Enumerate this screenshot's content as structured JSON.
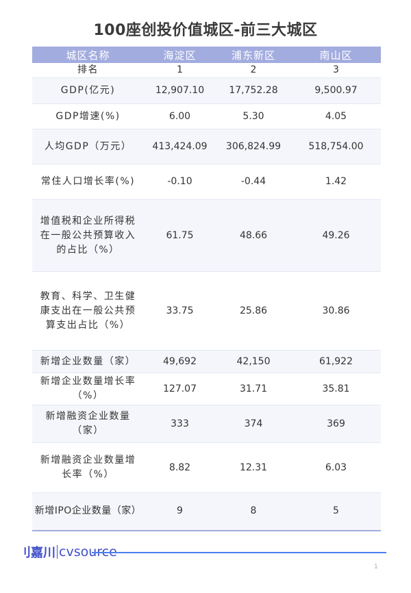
{
  "title": "100座创投价值城区-前三大城区",
  "table": {
    "headers": [
      "城区名称",
      "海淀区",
      "浦东新区",
      "南山区"
    ],
    "rows": [
      {
        "label": "排名",
        "values": [
          "1",
          "2",
          "3"
        ]
      },
      {
        "label": "GDP(亿元)",
        "values": [
          "12,907.10",
          "17,752.28",
          "9,500.97"
        ]
      },
      {
        "label": "GDP增速(%)",
        "values": [
          "6.00",
          "5.30",
          "4.05"
        ]
      },
      {
        "label": "人均GDP（万元）",
        "values": [
          "413,424.09",
          "306,824.99",
          "518,754.00"
        ]
      },
      {
        "label": "常住人口增长率(%)",
        "values": [
          "-0.10",
          "-0.44",
          "1.42"
        ]
      },
      {
        "label": "增值税和企业所得税在一般公共预算收入的占比（%）",
        "values": [
          "61.75",
          "48.66",
          "49.26"
        ]
      },
      {
        "label": "教育、科学、卫生健康支出在一般公共预算支出占比（%）",
        "values": [
          "33.75",
          "25.86",
          "30.86"
        ]
      },
      {
        "label": "新增企业数量（家）",
        "values": [
          "49,692",
          "42,150",
          "61,922"
        ]
      },
      {
        "label": "新增企业数量增长率（%）",
        "values": [
          "127.07",
          "31.71",
          "35.81"
        ]
      },
      {
        "label": "新增融资企业数量（家）",
        "values": [
          "333",
          "374",
          "369"
        ]
      },
      {
        "label": "新增融资企业数量增长率（%）",
        "values": [
          "8.82",
          "12.31",
          "6.03"
        ]
      },
      {
        "label": "新增IPO企业数量（家）",
        "values": [
          "9",
          "8",
          "5"
        ]
      }
    ]
  },
  "footer": {
    "logo_cn": "嘉川",
    "logo_en": "cvsource",
    "page_number": "1"
  },
  "colors": {
    "header_bg": "#a2acdf",
    "alt_row": "#f5f6fb",
    "accent": "#4a7ff0"
  }
}
